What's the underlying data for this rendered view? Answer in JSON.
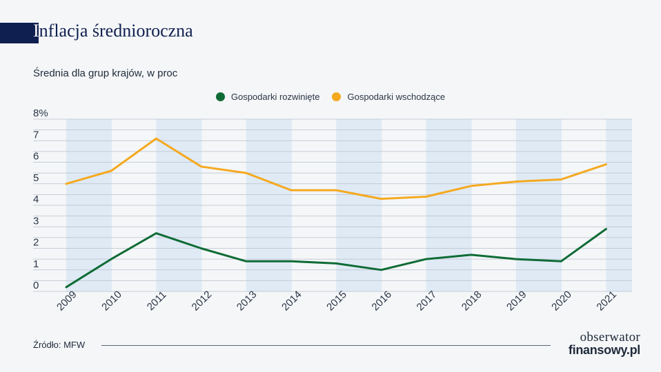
{
  "header": {
    "title_initial": "I",
    "title_rest": "nflacja średnioroczna",
    "subtitle": "Średnia dla grup krajów, w proc"
  },
  "colors": {
    "developed": "#0f6b35",
    "emerging": "#f5a91f",
    "band": "#dfeaf5",
    "grid": "#b9c0cb"
  },
  "chart_data": {
    "type": "line",
    "x": [
      "2009",
      "2010",
      "2011",
      "2012",
      "2013",
      "2014",
      "2015",
      "2016",
      "2017",
      "2018",
      "2019",
      "2020",
      "2021"
    ],
    "ylim": [
      0,
      8
    ],
    "yticks": [
      "0",
      "1",
      "2",
      "3",
      "4",
      "5",
      "6",
      "7",
      "8%"
    ],
    "grid": true,
    "legend_position": "top-center",
    "series": [
      {
        "name": "Gospodarki rozwinięte",
        "color": "#0f6b35",
        "values": [
          0.2,
          1.5,
          2.7,
          2.0,
          1.4,
          1.4,
          1.3,
          1.0,
          1.5,
          1.7,
          1.5,
          1.4,
          2.9
        ]
      },
      {
        "name": "Gospodarki wschodzące",
        "color": "#f5a91f",
        "values": [
          5.0,
          5.6,
          7.1,
          5.8,
          5.5,
          4.7,
          4.7,
          4.3,
          4.4,
          4.9,
          5.1,
          5.2,
          5.9
        ]
      }
    ]
  },
  "footer": {
    "source": "Źródło: MFW",
    "logo_line1": "obserwator",
    "logo_line2": "finansowy.pl"
  }
}
